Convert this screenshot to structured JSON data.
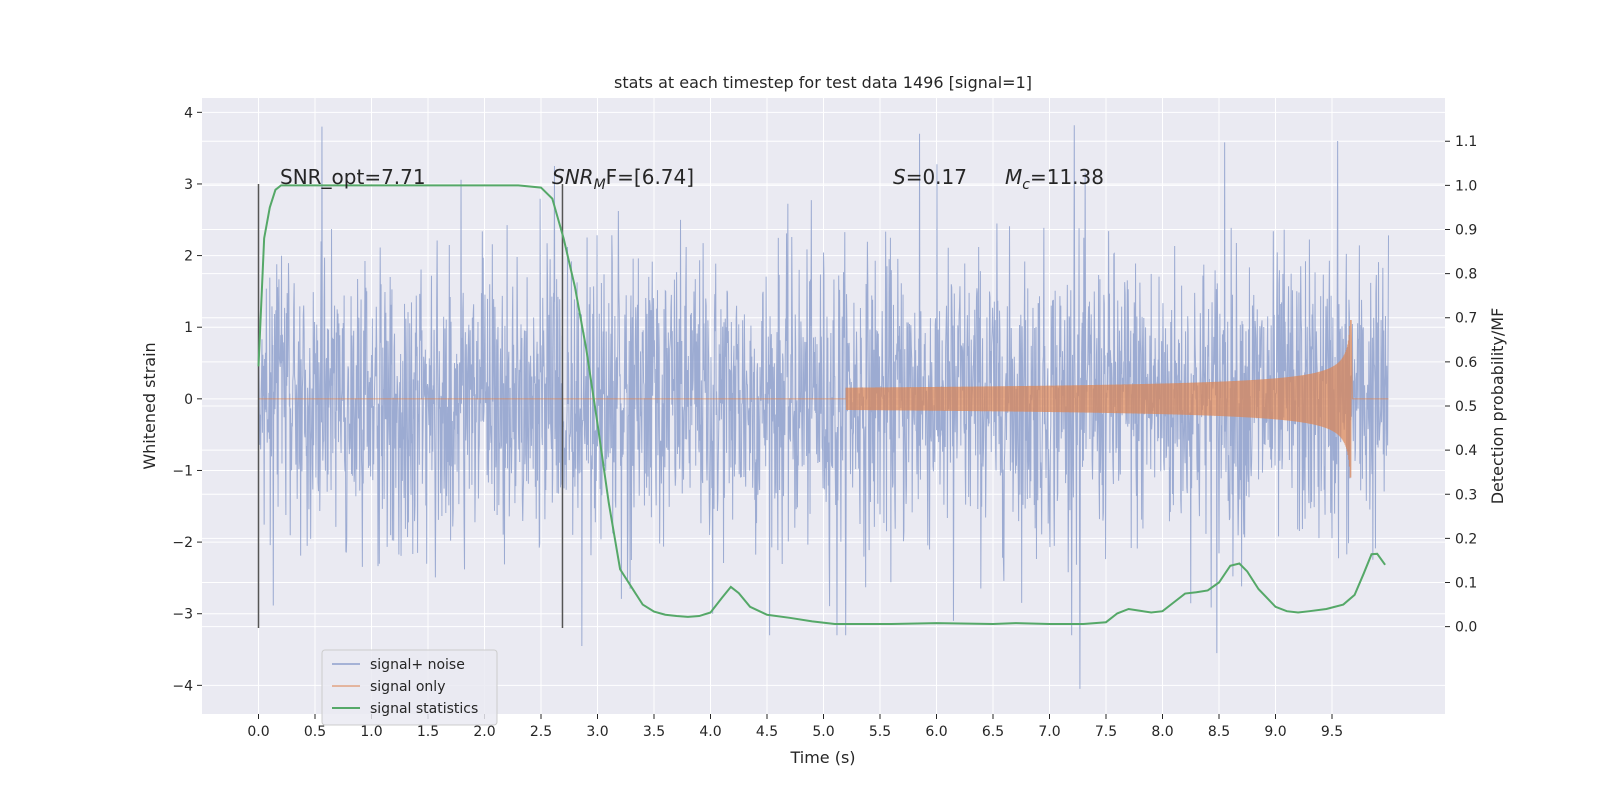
{
  "chart_data": {
    "type": "line",
    "title": "stats at each timestep for test data 1496 [signal=1]",
    "xlabel": "Time (s)",
    "ylabel_left": "Whitened strain",
    "ylabel_right": "Detection probability/MF",
    "xlim": [
      -0.5,
      10.5
    ],
    "ylim_left": [
      -4.4,
      4.2
    ],
    "ylim_right": [
      -0.198,
      1.198
    ],
    "x_ticks": [
      0.0,
      0.5,
      1.0,
      1.5,
      2.0,
      2.5,
      3.0,
      3.5,
      4.0,
      4.5,
      5.0,
      5.5,
      6.0,
      6.5,
      7.0,
      7.5,
      8.0,
      8.5,
      9.0,
      9.5
    ],
    "x_tick_labels": [
      "0.0",
      "0.5",
      "1.0",
      "1.5",
      "2.0",
      "2.5",
      "3.0",
      "3.5",
      "4.0",
      "4.5",
      "5.0",
      "5.5",
      "6.0",
      "6.5",
      "7.0",
      "7.5",
      "8.0",
      "8.5",
      "9.0",
      "9.5"
    ],
    "y_left_ticks": [
      4,
      3,
      2,
      1,
      0,
      -1,
      -2,
      -3,
      -4
    ],
    "y_left_tick_labels": [
      "4",
      "3",
      "2",
      "1",
      "0",
      "−1",
      "−2",
      "−3",
      "−4"
    ],
    "y_right_ticks": [
      1.1,
      1.0,
      0.9,
      0.8,
      0.7,
      0.6,
      0.5,
      0.4,
      0.3,
      0.2,
      0.1,
      0.0
    ],
    "y_right_tick_labels": [
      "1.1",
      "1.0",
      "0.9",
      "0.8",
      "0.7",
      "0.6",
      "0.5",
      "0.4",
      "0.3",
      "0.2",
      "0.1",
      "0.0"
    ],
    "grid": true,
    "legend_position": "lower-left",
    "annotations": {
      "snr_opt": "SNR_opt=7.71",
      "snr_mf_base": "SNR",
      "snr_mf_sub": "M",
      "snr_mf_rest": "F=[6.74]",
      "spin_var": "S",
      "spin_rest": "=0.17",
      "mc_base": "M",
      "mc_sub": "c",
      "mc_rest": "=11.38"
    },
    "vertical_lines": [
      {
        "x": 0.0,
        "y_range": [
          -3.2,
          3.0
        ]
      },
      {
        "x": 2.69,
        "y_range": [
          -3.2,
          3.0
        ]
      }
    ],
    "series": [
      {
        "name": "signal+ noise",
        "color": "#8ea0cd",
        "axis": "left",
        "noise_sigma": 1.0,
        "x_range": [
          0.0,
          10.0
        ],
        "peaks": [
          {
            "x": 0.56,
            "y": 3.8
          },
          {
            "x": 2.62,
            "y": 3.25
          },
          {
            "x": 2.86,
            "y": -3.45
          },
          {
            "x": 4.02,
            "y": -3.0
          },
          {
            "x": 5.12,
            "y": -3.3
          },
          {
            "x": 5.85,
            "y": 3.7
          },
          {
            "x": 6.15,
            "y": -3.1
          },
          {
            "x": 7.22,
            "y": 3.82
          },
          {
            "x": 7.27,
            "y": -4.05
          },
          {
            "x": 8.55,
            "y": 3.58
          },
          {
            "x": 8.48,
            "y": -3.55
          },
          {
            "x": 9.55,
            "y": 3.6
          }
        ]
      },
      {
        "name": "signal only",
        "color": "#dd8452",
        "axis": "left",
        "chirp_start": 5.2,
        "chirp_end": 9.67,
        "final_amplitude": 1.1
      },
      {
        "name": "signal statistics",
        "color": "#55a868",
        "axis": "right",
        "x": [
          0.0,
          0.05,
          0.1,
          0.15,
          0.2,
          0.3,
          0.5,
          1.0,
          1.5,
          2.0,
          2.3,
          2.5,
          2.6,
          2.7,
          2.8,
          2.9,
          3.0,
          3.1,
          3.2,
          3.3,
          3.4,
          3.5,
          3.6,
          3.7,
          3.8,
          3.9,
          4.0,
          4.1,
          4.18,
          4.25,
          4.35,
          4.5,
          4.7,
          4.9,
          5.1,
          5.3,
          5.6,
          6.0,
          6.5,
          6.7,
          7.0,
          7.3,
          7.5,
          7.6,
          7.7,
          7.8,
          7.9,
          8.0,
          8.1,
          8.2,
          8.3,
          8.4,
          8.5,
          8.6,
          8.68,
          8.75,
          8.85,
          9.0,
          9.1,
          9.2,
          9.3,
          9.45,
          9.6,
          9.7,
          9.78,
          9.85,
          9.9,
          9.97
        ],
        "y": [
          0.59,
          0.88,
          0.95,
          0.99,
          1.0,
          1.0,
          1.0,
          1.0,
          1.0,
          1.0,
          1.0,
          0.995,
          0.97,
          0.88,
          0.77,
          0.63,
          0.46,
          0.28,
          0.13,
          0.09,
          0.05,
          0.034,
          0.027,
          0.024,
          0.022,
          0.024,
          0.032,
          0.065,
          0.09,
          0.076,
          0.045,
          0.027,
          0.02,
          0.012,
          0.006,
          0.006,
          0.006,
          0.008,
          0.006,
          0.008,
          0.006,
          0.006,
          0.01,
          0.03,
          0.04,
          0.036,
          0.032,
          0.035,
          0.055,
          0.075,
          0.078,
          0.082,
          0.1,
          0.138,
          0.143,
          0.125,
          0.085,
          0.045,
          0.035,
          0.032,
          0.035,
          0.04,
          0.05,
          0.072,
          0.12,
          0.164,
          0.165,
          0.14
        ]
      }
    ]
  }
}
